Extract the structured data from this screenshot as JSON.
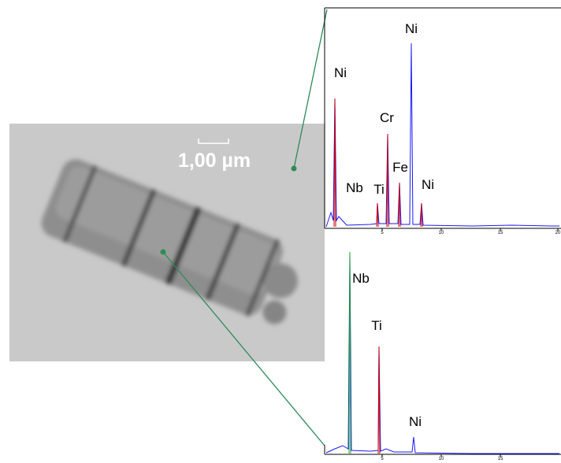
{
  "micrograph": {
    "scale_bar": "1,00 µm"
  },
  "spectra": [
    {
      "peak_labels": [
        "Ni",
        "Nb",
        "Ti",
        "Cr",
        "Fe",
        "Ni",
        "Ni"
      ],
      "x_ticks": [
        "5",
        "10",
        "15",
        "20"
      ]
    },
    {
      "peak_labels": [
        "Nb",
        "Ti",
        "Ni"
      ],
      "x_ticks": [
        "5",
        "10",
        "15"
      ]
    }
  ]
}
